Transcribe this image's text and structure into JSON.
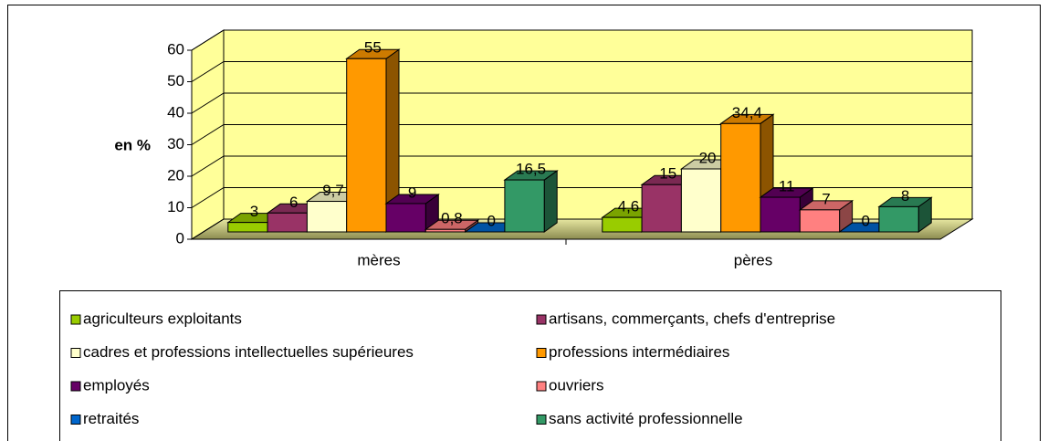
{
  "chart_data": {
    "type": "bar3d",
    "y_label": "en %",
    "categories": [
      "mères",
      "pères"
    ],
    "ylim": [
      0,
      60
    ],
    "yticks": [
      0,
      10,
      20,
      30,
      40,
      50,
      60
    ],
    "grid": true,
    "series": [
      {
        "name": "agriculteurs exploitants",
        "color": "#99cc00",
        "values": [
          3,
          4.6
        ],
        "value_labels": [
          "3",
          "4,6"
        ]
      },
      {
        "name": "artisans, commerçants, chefs d'entreprise",
        "color": "#993366",
        "values": [
          6,
          15
        ],
        "value_labels": [
          "6",
          "15"
        ]
      },
      {
        "name": "cadres et professions intellectuelles supérieures",
        "color": "#ffffcc",
        "values": [
          9.7,
          20
        ],
        "value_labels": [
          "9,7",
          "20"
        ]
      },
      {
        "name": "professions intermédiaires",
        "color": "#ff9900",
        "values": [
          55,
          34.4
        ],
        "value_labels": [
          "55",
          "34,4"
        ]
      },
      {
        "name": "employés",
        "color": "#660066",
        "values": [
          9,
          11
        ],
        "value_labels": [
          "9",
          "11"
        ]
      },
      {
        "name": "ouvriers",
        "color": "#ff8080",
        "values": [
          0.8,
          7
        ],
        "value_labels": [
          "0,8",
          "7"
        ]
      },
      {
        "name": "retraités",
        "color": "#0066cc",
        "values": [
          0,
          0
        ],
        "value_labels": [
          "0",
          "0"
        ]
      },
      {
        "name": "sans activité professionnelle",
        "color": "#339966",
        "values": [
          16.5,
          8
        ],
        "value_labels": [
          "16,5",
          "8"
        ]
      }
    ],
    "legend": "bottom"
  }
}
